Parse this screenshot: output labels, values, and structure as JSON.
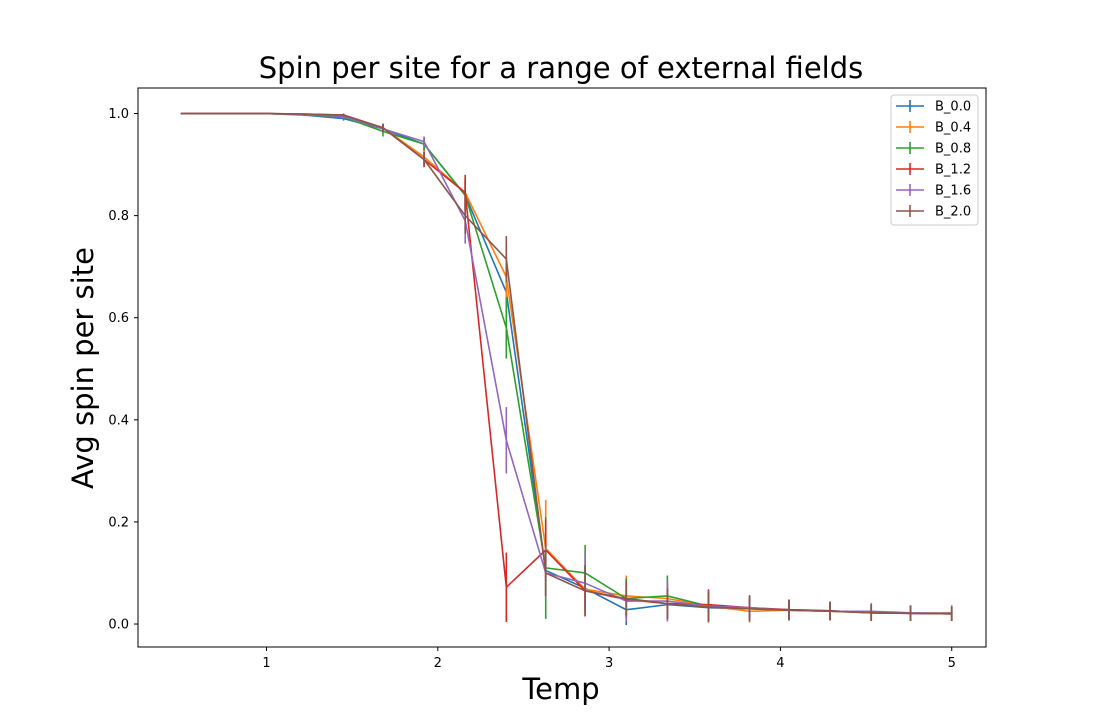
{
  "chart_data": {
    "type": "line",
    "title": "Spin per site for a range of external fields",
    "xlabel": "Temp",
    "ylabel": "Avg spin per site",
    "xlim": [
      0.25,
      5.2
    ],
    "ylim": [
      -0.045,
      1.05
    ],
    "xticks": [
      1,
      2,
      3,
      4,
      5
    ],
    "yticks": [
      0.0,
      0.2,
      0.4,
      0.6,
      0.8,
      1.0
    ],
    "ytick_labels": [
      "0.0",
      "0.2",
      "0.4",
      "0.6",
      "0.8",
      "1.0"
    ],
    "grid": false,
    "legend_position": "top-right",
    "x": [
      0.5,
      0.75,
      1.0,
      1.22,
      1.45,
      1.68,
      1.92,
      2.16,
      2.4,
      2.63,
      2.86,
      3.1,
      3.34,
      3.58,
      3.82,
      4.05,
      4.29,
      4.53,
      4.76,
      5.0
    ],
    "series": [
      {
        "name": "B_0.0",
        "color": "#1f77b4",
        "values": [
          1.0,
          1.0,
          1.0,
          0.997,
          0.99,
          0.97,
          0.94,
          0.84,
          0.65,
          0.105,
          0.07,
          0.028,
          0.038,
          0.032,
          0.03,
          0.028,
          0.026,
          0.022,
          0.021,
          0.02
        ],
        "errors": [
          0,
          0,
          0,
          0.002,
          0.004,
          0.008,
          0.012,
          0.03,
          0.05,
          0.05,
          0.04,
          0.03,
          0.03,
          0.025,
          0.022,
          0.02,
          0.018,
          0.016,
          0.015,
          0.014
        ]
      },
      {
        "name": "B_0.4",
        "color": "#ff7f0e",
        "values": [
          1.0,
          1.0,
          1.0,
          0.998,
          0.993,
          0.972,
          0.915,
          0.845,
          0.68,
          0.148,
          0.068,
          0.055,
          0.05,
          0.035,
          0.025,
          0.027,
          0.025,
          0.022,
          0.021,
          0.022
        ],
        "errors": [
          0,
          0,
          0,
          0.002,
          0.004,
          0.008,
          0.015,
          0.03,
          0.06,
          0.095,
          0.05,
          0.04,
          0.035,
          0.03,
          0.022,
          0.02,
          0.018,
          0.016,
          0.015,
          0.015
        ]
      },
      {
        "name": "B_0.8",
        "color": "#2ca02c",
        "values": [
          1.0,
          1.0,
          1.0,
          0.998,
          0.993,
          0.965,
          0.94,
          0.84,
          0.58,
          0.11,
          0.1,
          0.05,
          0.055,
          0.035,
          0.03,
          0.027,
          0.025,
          0.023,
          0.021,
          0.02
        ],
        "errors": [
          0,
          0,
          0,
          0.002,
          0.004,
          0.01,
          0.012,
          0.03,
          0.06,
          0.1,
          0.055,
          0.04,
          0.04,
          0.03,
          0.022,
          0.02,
          0.018,
          0.016,
          0.015,
          0.014
        ]
      },
      {
        "name": "B_1.2",
        "color": "#d62728",
        "values": [
          1.0,
          1.0,
          1.0,
          0.999,
          0.997,
          0.972,
          0.91,
          0.845,
          0.072,
          0.145,
          0.065,
          0.048,
          0.04,
          0.038,
          0.032,
          0.028,
          0.026,
          0.022,
          0.021,
          0.02
        ],
        "errors": [
          0,
          0,
          0,
          0.001,
          0.003,
          0.008,
          0.015,
          0.035,
          0.068,
          0.06,
          0.05,
          0.035,
          0.03,
          0.03,
          0.022,
          0.02,
          0.018,
          0.016,
          0.015,
          0.014
        ]
      },
      {
        "name": "B_1.6",
        "color": "#9467bd",
        "values": [
          1.0,
          1.0,
          1.0,
          0.998,
          0.994,
          0.97,
          0.945,
          0.79,
          0.36,
          0.1,
          0.08,
          0.045,
          0.045,
          0.035,
          0.032,
          0.027,
          0.025,
          0.025,
          0.022,
          0.021
        ],
        "errors": [
          0,
          0,
          0,
          0.002,
          0.004,
          0.008,
          0.01,
          0.045,
          0.065,
          0.05,
          0.06,
          0.04,
          0.04,
          0.03,
          0.025,
          0.02,
          0.018,
          0.016,
          0.015,
          0.014
        ]
      },
      {
        "name": "B_2.0",
        "color": "#8c564b",
        "values": [
          1.0,
          1.0,
          1.0,
          0.999,
          0.997,
          0.972,
          0.91,
          0.8,
          0.715,
          0.1,
          0.065,
          0.05,
          0.04,
          0.033,
          0.03,
          0.027,
          0.025,
          0.022,
          0.021,
          0.02
        ],
        "errors": [
          0,
          0,
          0,
          0.001,
          0.003,
          0.008,
          0.015,
          0.035,
          0.045,
          0.045,
          0.05,
          0.035,
          0.03,
          0.03,
          0.025,
          0.02,
          0.018,
          0.016,
          0.015,
          0.014
        ]
      }
    ]
  }
}
